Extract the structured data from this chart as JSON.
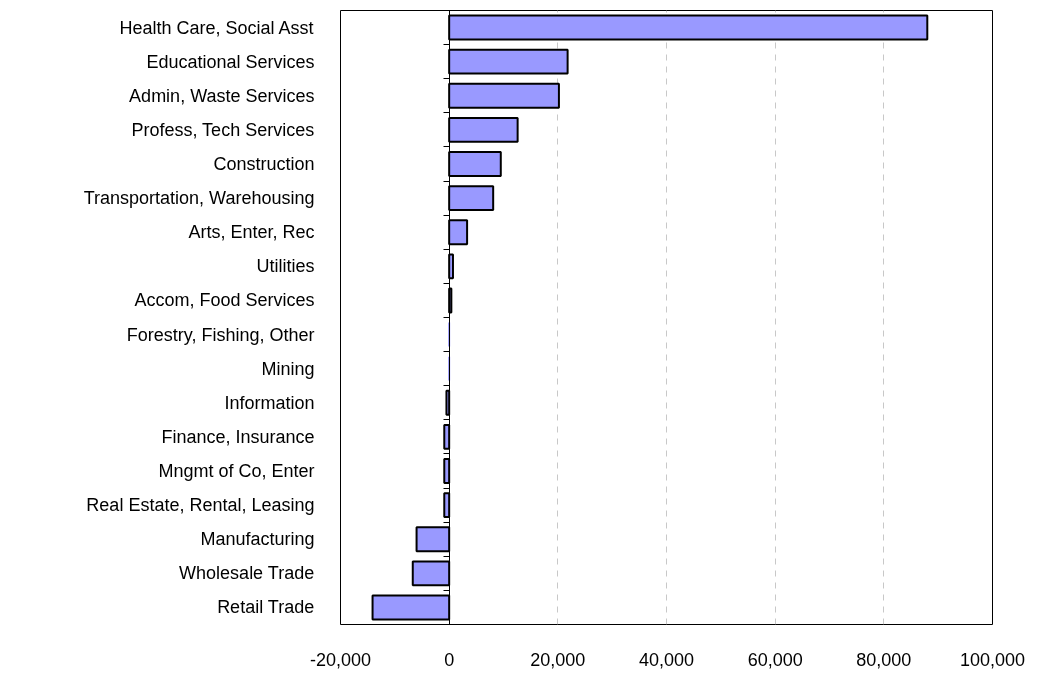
{
  "chart_data": {
    "type": "bar",
    "orientation": "horizontal",
    "categories": [
      "Health Care, Social Asst",
      "Educational Services",
      "Admin, Waste Services",
      "Profess, Tech Services",
      "Construction",
      "Transportation, Warehousing",
      "Arts, Enter, Rec",
      "Utilities",
      "Accom, Food Services",
      "Forestry, Fishing, Other",
      "Mining",
      "Information",
      "Finance, Insurance",
      "Mngmt of Co, Enter",
      "Real Estate, Rental, Leasing",
      "Manufacturing",
      "Wholesale Trade",
      "Retail Trade"
    ],
    "values": [
      88000,
      21800,
      20200,
      12600,
      9500,
      8100,
      3300,
      700,
      400,
      0,
      0,
      -500,
      -900,
      -900,
      -900,
      -6000,
      -6700,
      -14100
    ],
    "color": "#9999ff",
    "xlim": [
      -20000,
      100000
    ],
    "xticks": [
      {
        "value": -20000,
        "label": "-20,000"
      },
      0,
      {
        "value": 20000,
        "label": "20,000"
      },
      {
        "value": 40000,
        "label": "40,000"
      },
      {
        "value": 60000,
        "label": "60,000"
      },
      {
        "value": 80000,
        "label": "80,000"
      },
      {
        "value": 100000,
        "label": "100,000"
      }
    ],
    "grid": "x"
  }
}
